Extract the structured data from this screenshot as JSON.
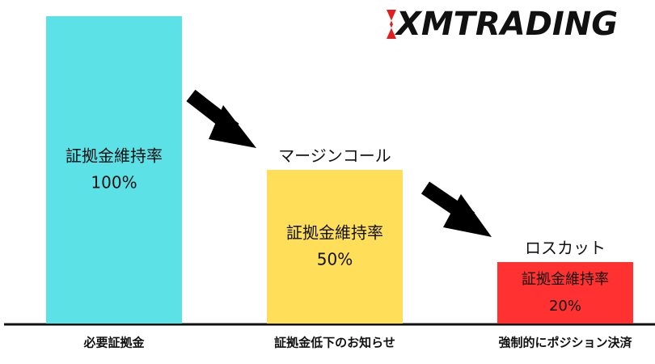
{
  "chart_data": {
    "type": "bar",
    "logo": "XMTRADING",
    "categories": [
      "必要証拠金",
      "証拠金低下のお知らせ",
      "強制的にポジション決済"
    ],
    "values": [
      100,
      50,
      20
    ],
    "value_labels": [
      "100%",
      "50%",
      "20%"
    ],
    "bar_label": "証拠金維持率",
    "annotations": [
      null,
      "マージンコール",
      "ロスカット"
    ],
    "colors": [
      "#5ce1e6",
      "#ffde59",
      "#ff3131"
    ]
  }
}
